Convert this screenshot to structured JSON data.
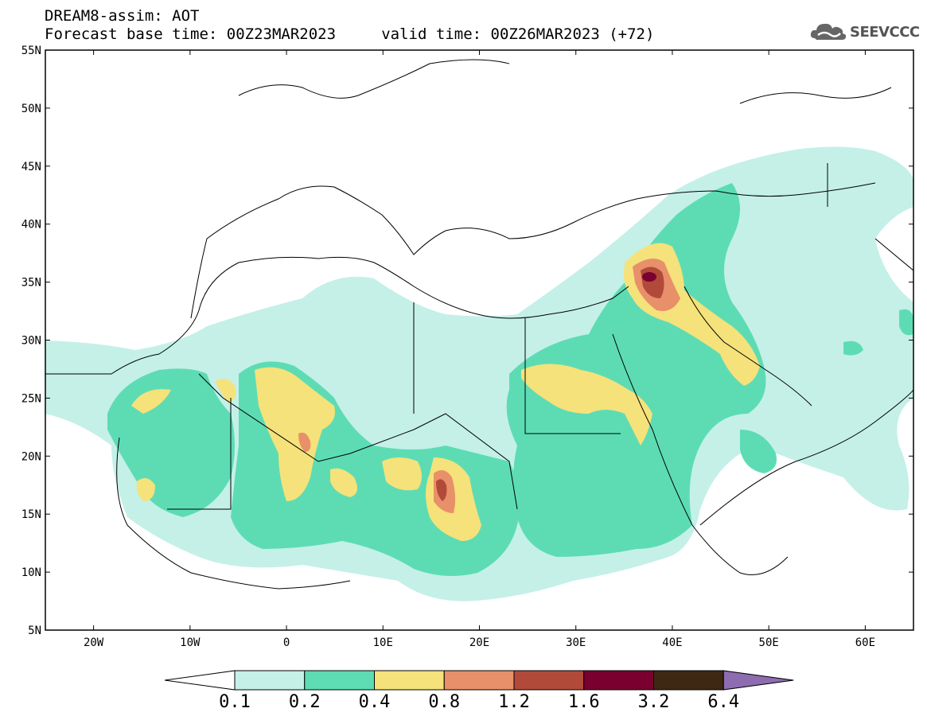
{
  "header": {
    "title_line1": "DREAM8-assim: AOT",
    "title_line2": "Forecast base time: 00Z23MAR2023     valid time: 00Z26MAR2023 (+72)",
    "logo_text": "SEEVCCC"
  },
  "map": {
    "lat_labels": [
      "55N",
      "50N",
      "45N",
      "40N",
      "35N",
      "30N",
      "25N",
      "20N",
      "15N",
      "10N",
      "5N"
    ],
    "lon_labels": [
      "20W",
      "10W",
      "0",
      "10E",
      "20E",
      "30E",
      "40E",
      "50E",
      "60E"
    ],
    "lat_range": [
      5,
      55
    ],
    "lon_range": [
      -25,
      65
    ]
  },
  "colorbar": {
    "labels": [
      "0.1",
      "0.2",
      "0.4",
      "0.8",
      "1.2",
      "1.6",
      "3.2",
      "6.4"
    ],
    "colors": [
      "#c4f0e8",
      "#5ddcb4",
      "#f5e27a",
      "#e8906a",
      "#b24a3a",
      "#7a0030",
      "#3e2814",
      "#8e6cb0"
    ]
  },
  "colors": {
    "level_0_1": "#c4f0e8",
    "level_0_2": "#5ddcb4",
    "level_0_4": "#f5e27a",
    "level_0_8": "#e8906a",
    "level_1_2": "#b24a3a",
    "level_1_6": "#7a0030"
  }
}
